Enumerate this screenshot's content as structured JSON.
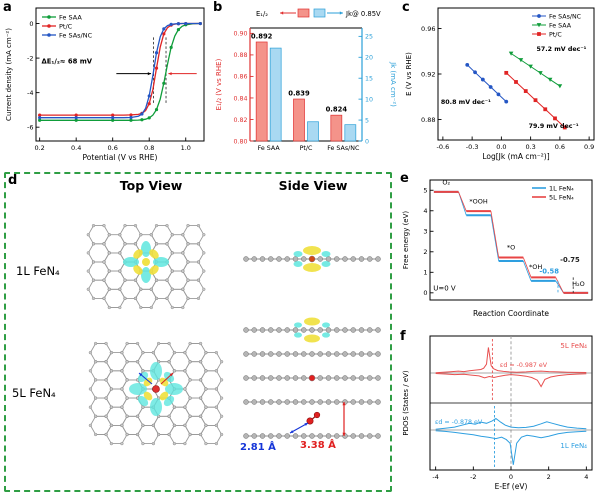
{
  "figure": {
    "background": "#ffffff"
  },
  "panels": {
    "a": {
      "label": "a"
    },
    "b": {
      "label": "b"
    },
    "c": {
      "label": "c"
    },
    "d": {
      "label": "d",
      "top_header": "Top View",
      "side_header": "Side View",
      "row1_label": "1L FeN₄",
      "row2_label": "5L FeN₄",
      "dist_blue": "2.81 Å",
      "dist_red": "3.38 Å",
      "border_color": "#2f9e44"
    },
    "e": {
      "label": "e"
    },
    "f": {
      "label": "f"
    }
  },
  "chart_data": [
    {
      "id": "a",
      "type": "line",
      "xlabel": "Potential (V vs RHE)",
      "ylabel": "Current density (mA cm⁻²)",
      "xlim": [
        0.18,
        1.1
      ],
      "ylim": [
        -6.8,
        0.9
      ],
      "xticks": [
        0.2,
        0.4,
        0.6,
        0.8,
        1.0
      ],
      "yticks": [
        0,
        -2,
        -4,
        -6
      ],
      "annotation": "ΔE₁/₂≈ 68 mV",
      "dash_x": [
        0.824,
        0.892
      ],
      "x": [
        0.2,
        0.3,
        0.4,
        0.5,
        0.6,
        0.66,
        0.7,
        0.74,
        0.76,
        0.78,
        0.8,
        0.82,
        0.84,
        0.86,
        0.88,
        0.9,
        0.92,
        0.94,
        0.96,
        0.98,
        1.0,
        1.04,
        1.08
      ],
      "series": [
        {
          "name": "Fe SAA",
          "color": "#0f9d3a",
          "e_half": 0.892,
          "y": [
            -5.6,
            -5.6,
            -5.6,
            -5.6,
            -5.6,
            -5.6,
            -5.6,
            -5.59,
            -5.57,
            -5.54,
            -5.46,
            -5.3,
            -4.98,
            -4.38,
            -3.46,
            -2.36,
            -1.38,
            -0.72,
            -0.35,
            -0.16,
            -0.07,
            -0.01,
            0.0
          ]
        },
        {
          "name": "Pt/C",
          "color": "#e02424",
          "e_half": 0.839,
          "y": [
            -5.3,
            -5.3,
            -5.3,
            -5.3,
            -5.3,
            -5.3,
            -5.29,
            -5.26,
            -5.2,
            -5.04,
            -4.64,
            -3.82,
            -2.58,
            -1.37,
            -0.6,
            -0.24,
            -0.09,
            -0.03,
            -0.01,
            0.0,
            0.0,
            0.0,
            0.0
          ]
        },
        {
          "name": "Fe SAs/NC",
          "color": "#2456c4",
          "e_half": 0.824,
          "y": [
            -5.45,
            -5.45,
            -5.45,
            -5.45,
            -5.45,
            -5.45,
            -5.44,
            -5.37,
            -5.24,
            -4.91,
            -4.19,
            -3.0,
            -1.69,
            -0.77,
            -0.31,
            -0.12,
            -0.05,
            -0.02,
            -0.01,
            0.0,
            0.0,
            0.0,
            0.0
          ]
        }
      ]
    },
    {
      "id": "b",
      "type": "bar",
      "categories": [
        "Fe SAA",
        "Pt/C",
        "Fe SAs/NC"
      ],
      "left_axis": {
        "label": "E₁/₂ (V vs RHE)",
        "color": "#e03030",
        "lim": [
          0.8,
          0.905
        ],
        "ticks": [
          0.8,
          0.82,
          0.84,
          0.86,
          0.88,
          0.9
        ]
      },
      "right_axis": {
        "label": "Jk (mA cm⁻²)",
        "color": "#2a9fd8",
        "lim": [
          0,
          27
        ],
        "ticks": [
          0,
          5,
          10,
          15,
          20,
          25
        ]
      },
      "e12_values": [
        0.892,
        0.839,
        0.824
      ],
      "jk_values": [
        22.2,
        4.6,
        3.9
      ],
      "value_labels": [
        "0.892",
        "0.839",
        "0.824"
      ],
      "bar_colors": {
        "e12": "#f4938a",
        "jk": "#a9d9f2"
      },
      "legend": {
        "e12": "E₁/₂",
        "jk": "Jk@ 0.85V"
      }
    },
    {
      "id": "c",
      "type": "scatter",
      "xlabel": "Log[Jk (mA cm⁻²)]",
      "ylabel": "E (V vs RHE)",
      "xlim": [
        -0.65,
        0.95
      ],
      "ylim": [
        0.862,
        0.978
      ],
      "xticks": [
        -0.6,
        -0.3,
        0.0,
        0.3,
        0.6,
        0.9
      ],
      "yticks": [
        0.88,
        0.92,
        0.96
      ],
      "series": [
        {
          "name": "Fe SAs/NC",
          "color": "#2456c4",
          "marker": "circle",
          "tafel_slope": "80.8 mV dec⁻¹",
          "points": [
            [
              -0.35,
              0.928
            ],
            [
              -0.27,
              0.9215
            ],
            [
              -0.19,
              0.9151
            ],
            [
              -0.11,
              0.9086
            ],
            [
              -0.03,
              0.9021
            ],
            [
              0.05,
              0.8957
            ]
          ]
        },
        {
          "name": "Fe SAA",
          "color": "#0f9d3a",
          "marker": "tri-down",
          "tafel_slope": "57.2 mV dec⁻¹",
          "points": [
            [
              0.1,
              0.938
            ],
            [
              0.2,
              0.9323
            ],
            [
              0.3,
              0.9266
            ],
            [
              0.4,
              0.9209
            ],
            [
              0.5,
              0.9151
            ],
            [
              0.6,
              0.9094
            ]
          ]
        },
        {
          "name": "Pt/C",
          "color": "#e02424",
          "marker": "square",
          "tafel_slope": "79.9 mV dec⁻¹",
          "points": [
            [
              0.05,
              0.921
            ],
            [
              0.15,
              0.913
            ],
            [
              0.25,
              0.905
            ],
            [
              0.35,
              0.897
            ],
            [
              0.45,
              0.889
            ],
            [
              0.55,
              0.881
            ],
            [
              0.65,
              0.873
            ]
          ]
        }
      ],
      "annotations": [
        {
          "text": "80.8 mV dec⁻¹",
          "x": -0.62,
          "y": 0.8935
        },
        {
          "text": "57.2 mV dec⁻¹",
          "x": 0.36,
          "y": 0.94
        },
        {
          "text": "79.9 mV dec⁻¹",
          "x": 0.28,
          "y": 0.8725
        }
      ]
    },
    {
      "id": "e",
      "type": "steps",
      "xlabel": "Reaction Coordinate",
      "ylabel": "Free energy (eV)",
      "ylim": [
        -0.35,
        5.5
      ],
      "yticks": [
        0,
        1,
        2,
        3,
        4,
        5
      ],
      "u_label": "U=0 V",
      "states": [
        "O₂",
        "*OOH",
        "*O",
        "*OH",
        "H₂O"
      ],
      "series": [
        {
          "name": "1L FeN₄",
          "color": "#2e9fe0",
          "values": [
            4.92,
            3.78,
            1.55,
            0.58,
            0
          ]
        },
        {
          "name": "5L FeN₄",
          "color": "#e84545",
          "values": [
            4.92,
            3.98,
            1.72,
            0.75,
            0
          ]
        }
      ],
      "annotations": [
        {
          "text": "-0.75",
          "color": "#222222"
        },
        {
          "text": "-0.58",
          "color": "#2e9fe0"
        }
      ]
    },
    {
      "id": "f",
      "type": "pdos",
      "xlabel": "E-Ef (eV)",
      "ylabel": "PDOS (States / eV)",
      "xlim": [
        -4.3,
        4.3
      ],
      "xticks": [
        -4,
        -2,
        0,
        2,
        4
      ],
      "panels": [
        {
          "name": "5L FeN₄",
          "color": "#e85050",
          "ed": -0.987,
          "ed_label": "εd = -0.987 eV",
          "up": [
            [
              -4,
              0.02
            ],
            [
              -3.6,
              0.05
            ],
            [
              -3.2,
              0.08
            ],
            [
              -2.8,
              0.12
            ],
            [
              -2.5,
              0.09
            ],
            [
              -2.2,
              0.14
            ],
            [
              -1.9,
              0.18
            ],
            [
              -1.6,
              0.22
            ],
            [
              -1.45,
              0.3
            ],
            [
              -1.3,
              0.55
            ],
            [
              -1.2,
              1.6
            ],
            [
              -1.05,
              0.45
            ],
            [
              -0.9,
              0.25
            ],
            [
              -0.7,
              0.15
            ],
            [
              -0.4,
              0.1
            ],
            [
              -0.1,
              0.07
            ],
            [
              0.3,
              0.05
            ],
            [
              0.8,
              0.07
            ],
            [
              1.2,
              0.1
            ],
            [
              1.6,
              0.12
            ],
            [
              2,
              0.09
            ],
            [
              2.5,
              0.07
            ],
            [
              3,
              0.05
            ],
            [
              3.5,
              0.04
            ],
            [
              4,
              0.03
            ]
          ],
          "down": [
            [
              -4,
              -0.03
            ],
            [
              -3.5,
              -0.06
            ],
            [
              -3,
              -0.1
            ],
            [
              -2.5,
              -0.08
            ],
            [
              -2.1,
              -0.13
            ],
            [
              -1.7,
              -0.18
            ],
            [
              -1.4,
              -0.3
            ],
            [
              -1.15,
              -0.22
            ],
            [
              -0.9,
              -0.28
            ],
            [
              -0.6,
              -0.2
            ],
            [
              -0.3,
              -0.14
            ],
            [
              0,
              -0.1
            ],
            [
              0.4,
              -0.14
            ],
            [
              0.8,
              -0.2
            ],
            [
              1.1,
              -0.28
            ],
            [
              1.4,
              -0.45
            ],
            [
              1.6,
              -0.85
            ],
            [
              1.8,
              -0.4
            ],
            [
              2.1,
              -0.25
            ],
            [
              2.5,
              -0.16
            ],
            [
              3,
              -0.1
            ],
            [
              3.5,
              -0.07
            ],
            [
              4,
              -0.05
            ]
          ]
        },
        {
          "name": "1L FeN₄",
          "color": "#2e9fe0",
          "ed": -0.878,
          "ed_label": "εd = -0.878 eV",
          "up": [
            [
              -4,
              0.03
            ],
            [
              -3.5,
              0.07
            ],
            [
              -3,
              0.12
            ],
            [
              -2.6,
              0.2
            ],
            [
              -2.2,
              0.28
            ],
            [
              -1.9,
              0.24
            ],
            [
              -1.6,
              0.33
            ],
            [
              -1.3,
              0.28
            ],
            [
              -1,
              0.38
            ],
            [
              -0.8,
              0.48
            ],
            [
              -0.55,
              0.33
            ],
            [
              -0.3,
              0.2
            ],
            [
              0,
              0.12
            ],
            [
              0.4,
              0.09
            ],
            [
              0.8,
              0.11
            ],
            [
              1.2,
              0.16
            ],
            [
              1.6,
              0.26
            ],
            [
              1.9,
              0.34
            ],
            [
              2.2,
              0.28
            ],
            [
              2.6,
              0.19
            ],
            [
              3,
              0.12
            ],
            [
              3.5,
              0.08
            ],
            [
              4,
              0.05
            ]
          ],
          "down": [
            [
              -4,
              -0.03
            ],
            [
              -3.5,
              -0.06
            ],
            [
              -3,
              -0.1
            ],
            [
              -2.5,
              -0.15
            ],
            [
              -2,
              -0.2
            ],
            [
              -1.6,
              -0.26
            ],
            [
              -1.2,
              -0.3
            ],
            [
              -0.8,
              -0.36
            ],
            [
              -0.5,
              -0.3
            ],
            [
              -0.25,
              -0.4
            ],
            [
              -0.05,
              -0.55
            ],
            [
              0.12,
              -1.45
            ],
            [
              0.3,
              -0.55
            ],
            [
              0.55,
              -0.3
            ],
            [
              0.85,
              -0.22
            ],
            [
              1.2,
              -0.26
            ],
            [
              1.6,
              -0.32
            ],
            [
              2,
              -0.26
            ],
            [
              2.5,
              -0.16
            ],
            [
              3,
              -0.1
            ],
            [
              3.5,
              -0.07
            ],
            [
              4,
              -0.05
            ]
          ]
        }
      ]
    }
  ]
}
